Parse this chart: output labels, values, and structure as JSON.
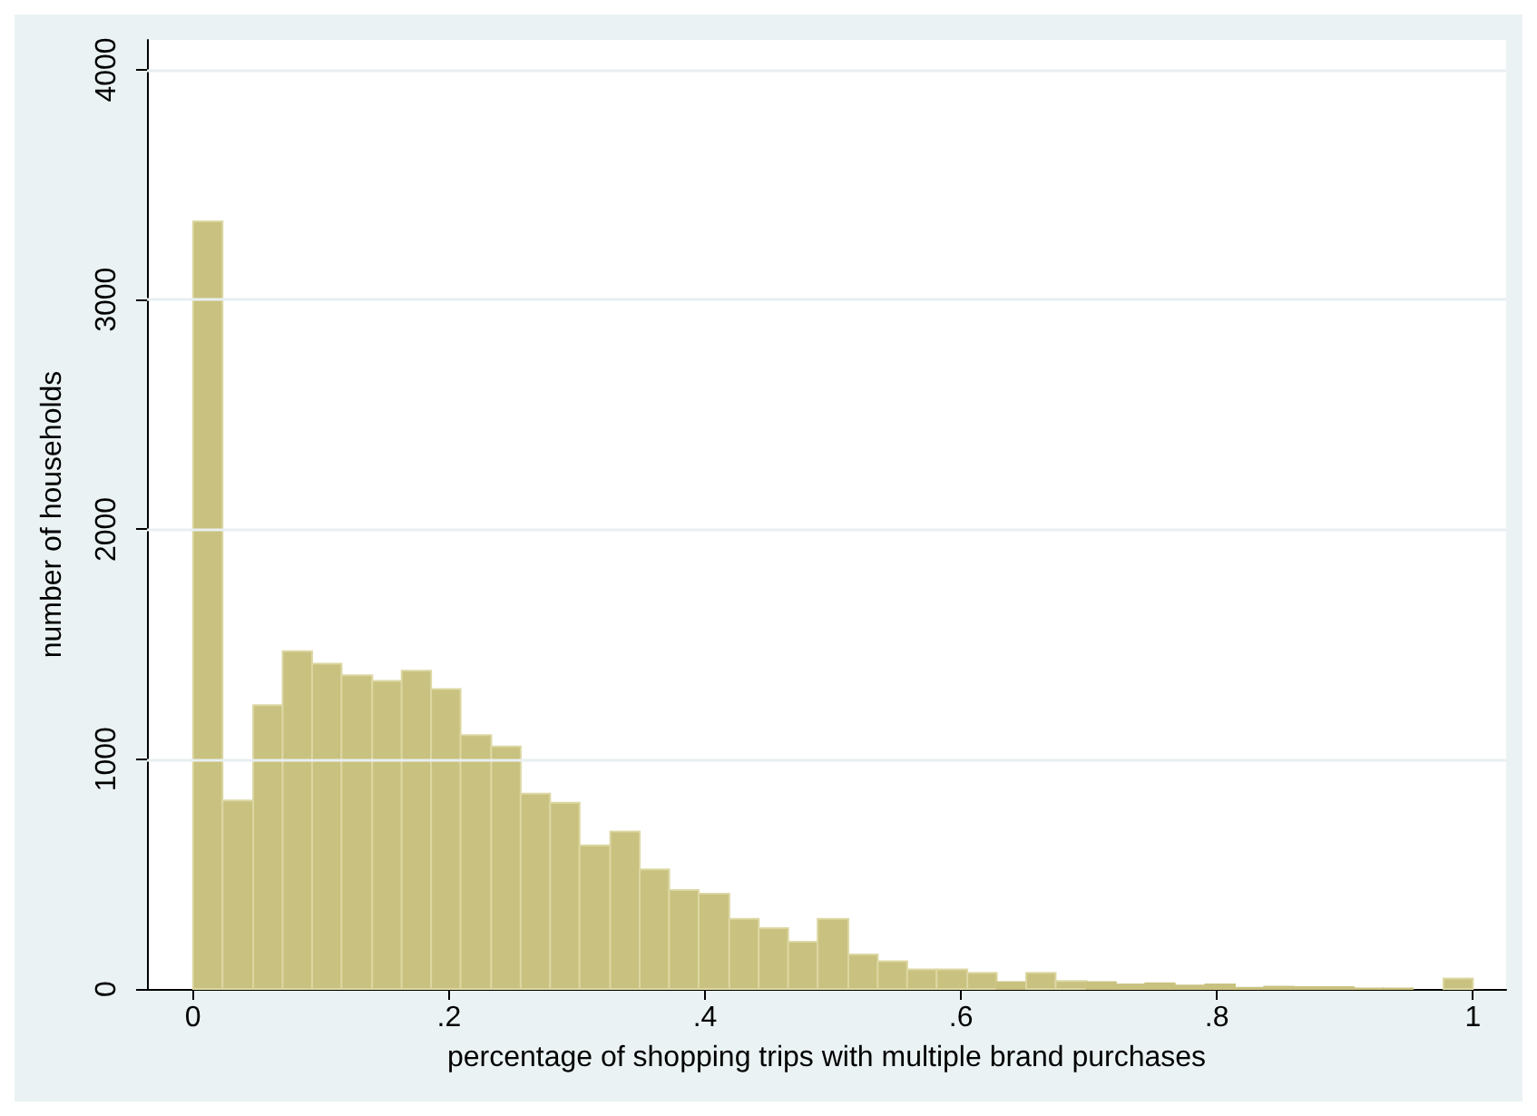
{
  "chart_data": {
    "type": "histogram",
    "xlabel": "percentage of shopping trips with multiple brand purchases",
    "ylabel": "number of households",
    "bins": [
      0,
      0.023,
      0.047,
      0.07,
      0.093,
      0.116,
      0.14,
      0.163,
      0.186,
      0.209,
      0.233,
      0.256,
      0.279,
      0.302,
      0.326,
      0.349,
      0.372,
      0.395,
      0.419,
      0.442,
      0.465,
      0.488,
      0.512,
      0.535,
      0.558,
      0.581,
      0.605,
      0.628,
      0.651,
      0.674,
      0.698,
      0.721,
      0.744,
      0.767,
      0.791,
      0.814,
      0.837,
      0.86,
      0.884,
      0.907,
      0.93,
      0.953,
      0.977,
      1
    ],
    "values": [
      3340,
      820,
      1235,
      1470,
      1415,
      1365,
      1340,
      1385,
      1305,
      1105,
      1055,
      850,
      810,
      625,
      685,
      520,
      430,
      415,
      305,
      265,
      205,
      305,
      150,
      120,
      85,
      85,
      70,
      30,
      70,
      35,
      30,
      20,
      25,
      15,
      20,
      5,
      10,
      8,
      8,
      2,
      2,
      0,
      45
    ],
    "color": "#c9c17f",
    "xlim": [
      -0.036,
      1.026
    ],
    "xticks": [
      {
        "value": 0,
        "label": "0"
      },
      {
        "value": 0.2,
        "label": ".2"
      },
      {
        "value": 0.4,
        "label": ".4"
      },
      {
        "value": 0.6,
        "label": ".6"
      },
      {
        "value": 0.8,
        "label": ".8"
      },
      {
        "value": 1,
        "label": "1"
      }
    ],
    "ylim": [
      0,
      4130
    ],
    "yticks": [
      0,
      1000,
      2000,
      3000,
      4000
    ],
    "grid": "y"
  }
}
